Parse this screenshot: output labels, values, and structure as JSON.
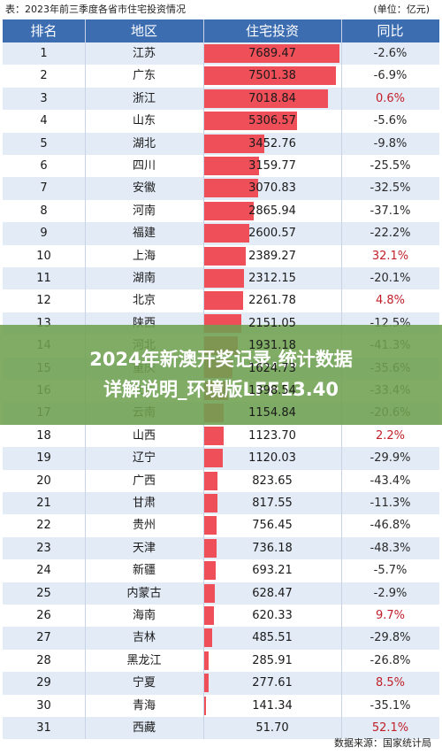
{
  "caption": {
    "title": "表：2023年前三季度各省市住宅投资情况",
    "unit": "(单位：亿元)"
  },
  "overlay": {
    "line1": "2024年新澳开奖记录,统计数据",
    "line2": "详解说明_环境版LFF13.40"
  },
  "source": "数据来源：国家统计局",
  "colors": {
    "header": "#3d6db1",
    "bar": "#ef4f58",
    "positive": "#c0202a",
    "stripe": "#e3ebf6"
  },
  "chart_data": {
    "type": "table",
    "title": "2023年前三季度各省市住宅投资情况",
    "columns": [
      "排名",
      "地区",
      "住宅投资",
      "同比"
    ],
    "xmax": 7689.47,
    "rows": [
      {
        "rank": "1",
        "region": "江苏",
        "investment": 7689.47,
        "yoy": "-2.6%"
      },
      {
        "rank": "2",
        "region": "广东",
        "investment": 7501.38,
        "yoy": "-6.9%"
      },
      {
        "rank": "3",
        "region": "浙江",
        "investment": 7018.84,
        "yoy": "0.6%"
      },
      {
        "rank": "4",
        "region": "山东",
        "investment": 5306.57,
        "yoy": "-5.6%"
      },
      {
        "rank": "5",
        "region": "湖北",
        "investment": 3452.76,
        "yoy": "-9.8%"
      },
      {
        "rank": "6",
        "region": "四川",
        "investment": 3159.77,
        "yoy": "-25.5%"
      },
      {
        "rank": "7",
        "region": "安徽",
        "investment": 3070.83,
        "yoy": "-32.5%"
      },
      {
        "rank": "8",
        "region": "河南",
        "investment": 2865.94,
        "yoy": "-37.1%"
      },
      {
        "rank": "9",
        "region": "福建",
        "investment": 2600.57,
        "yoy": "-22.2%"
      },
      {
        "rank": "10",
        "region": "上海",
        "investment": 2389.27,
        "yoy": "32.1%"
      },
      {
        "rank": "11",
        "region": "湖南",
        "investment": 2312.15,
        "yoy": "-20.1%"
      },
      {
        "rank": "12",
        "region": "北京",
        "investment": 2261.78,
        "yoy": "4.8%"
      },
      {
        "rank": "13",
        "region": "陕西",
        "investment": 2151.05,
        "yoy": "-12.5%"
      },
      {
        "rank": "14",
        "region": "河北",
        "investment": 1931.18,
        "yoy": "-41.3%"
      },
      {
        "rank": "15",
        "region": "重庆",
        "investment": 1624.73,
        "yoy": "-35.6%"
      },
      {
        "rank": "16",
        "region": "江西",
        "investment": 1398.54,
        "yoy": "-33.4%"
      },
      {
        "rank": "17",
        "region": "云南",
        "investment": 1154.84,
        "yoy": "-20.6%"
      },
      {
        "rank": "18",
        "region": "山西",
        "investment": 1123.7,
        "yoy": "2.2%"
      },
      {
        "rank": "19",
        "region": "辽宁",
        "investment": 1120.03,
        "yoy": "-29.9%"
      },
      {
        "rank": "20",
        "region": "广西",
        "investment": 823.65,
        "yoy": "-43.4%"
      },
      {
        "rank": "21",
        "region": "甘肃",
        "investment": 817.55,
        "yoy": "-11.3%"
      },
      {
        "rank": "22",
        "region": "贵州",
        "investment": 756.45,
        "yoy": "-46.8%"
      },
      {
        "rank": "23",
        "region": "天津",
        "investment": 736.18,
        "yoy": "-48.3%"
      },
      {
        "rank": "24",
        "region": "新疆",
        "investment": 693.21,
        "yoy": "-5.7%"
      },
      {
        "rank": "25",
        "region": "内蒙古",
        "investment": 628.47,
        "yoy": "-2.9%"
      },
      {
        "rank": "26",
        "region": "海南",
        "investment": 620.33,
        "yoy": "9.7%"
      },
      {
        "rank": "27",
        "region": "吉林",
        "investment": 485.51,
        "yoy": "-29.8%"
      },
      {
        "rank": "28",
        "region": "黑龙江",
        "investment": 285.91,
        "yoy": "-26.8%"
      },
      {
        "rank": "29",
        "region": "宁夏",
        "investment": 277.61,
        "yoy": "8.5%"
      },
      {
        "rank": "30",
        "region": "青海",
        "investment": 141.34,
        "yoy": "-35.1%"
      },
      {
        "rank": "31",
        "region": "西藏",
        "investment": 51.7,
        "yoy": "52.1%"
      }
    ]
  }
}
